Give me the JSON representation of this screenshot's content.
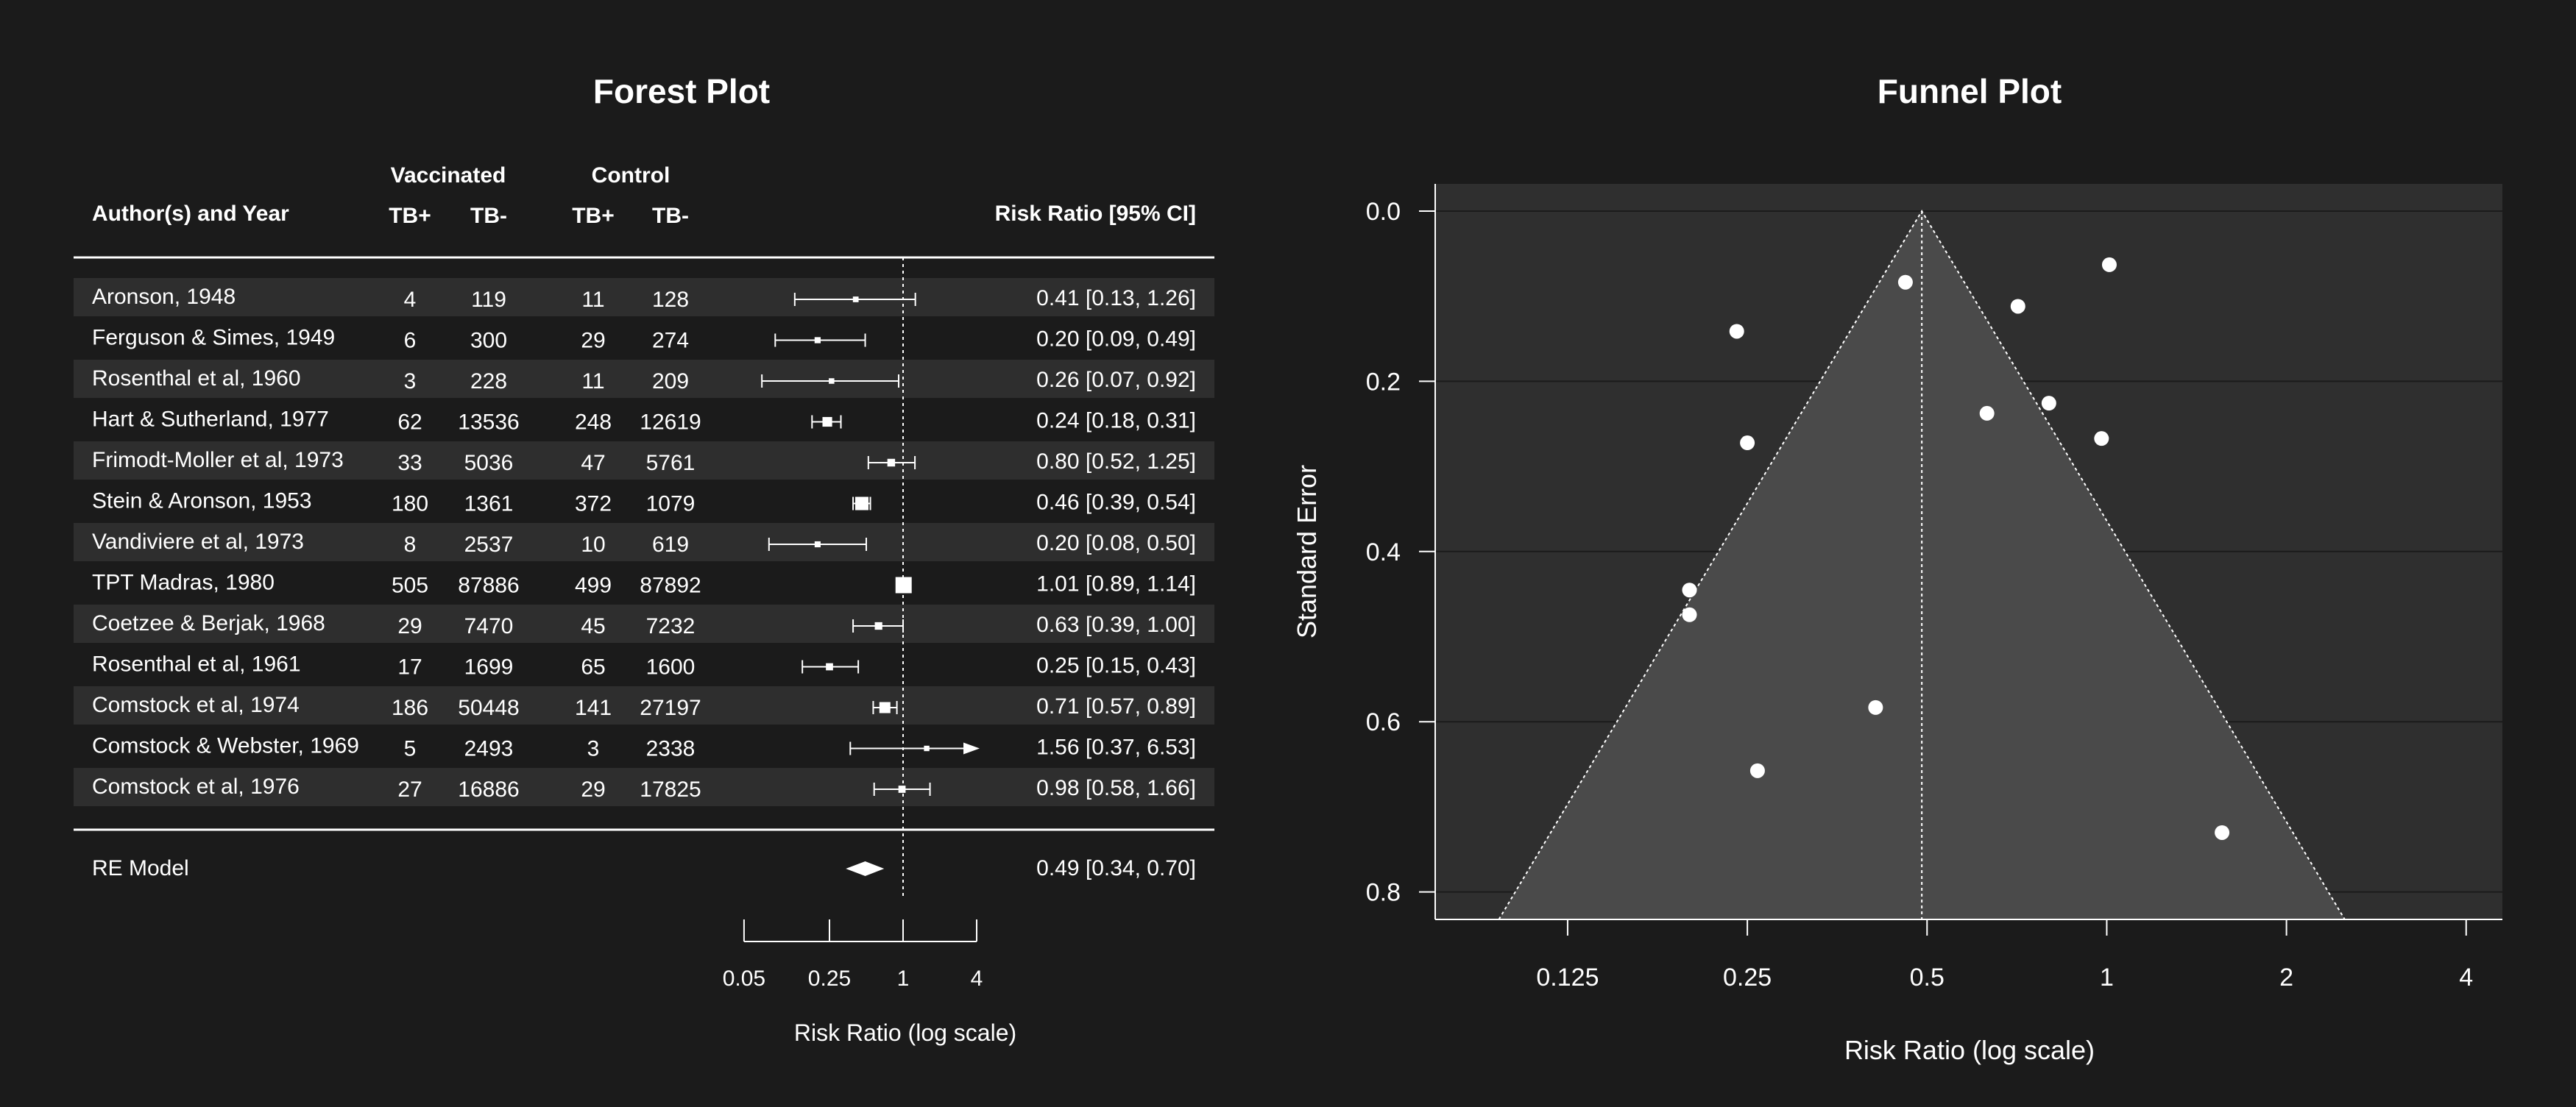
{
  "chart_data": [
    {
      "type": "forest",
      "title": "Forest Plot",
      "headers": {
        "study": "Author(s) and Year",
        "group1": "Vaccinated",
        "group2": "Control",
        "col_tbpos_v": "TB+",
        "col_tbneg_v": "TB-",
        "col_tbpos_c": "TB+",
        "col_tbneg_c": "TB-",
        "estimate": "Risk Ratio [95% CI]"
      },
      "studies": [
        {
          "label": "Aronson, 1948",
          "tpos": 4,
          "tneg": 119,
          "cpos": 11,
          "cneg": 128,
          "rr": 0.41,
          "lo": 0.13,
          "hi": 1.26,
          "text": "0.41 [0.13, 1.26]",
          "se": 0.5833
        },
        {
          "label": "Ferguson & Simes, 1949",
          "tpos": 6,
          "tneg": 300,
          "cpos": 29,
          "cneg": 274,
          "rr": 0.2,
          "lo": 0.09,
          "hi": 0.49,
          "text": "0.20 [0.09, 0.49]",
          "se": 0.4453
        },
        {
          "label": "Rosenthal et al, 1960",
          "tpos": 3,
          "tneg": 228,
          "cpos": 11,
          "cneg": 209,
          "rr": 0.26,
          "lo": 0.07,
          "hi": 0.92,
          "text": "0.26 [0.07, 0.92]",
          "se": 0.6576
        },
        {
          "label": "Hart & Sutherland, 1977",
          "tpos": 62,
          "tneg": 13536,
          "cpos": 248,
          "cneg": 12619,
          "rr": 0.24,
          "lo": 0.18,
          "hi": 0.31,
          "text": "0.24 [0.18, 0.31]",
          "se": 0.1413
        },
        {
          "label": "Frimodt-Moller et al, 1973",
          "tpos": 33,
          "tneg": 5036,
          "cpos": 47,
          "cneg": 5761,
          "rr": 0.8,
          "lo": 0.52,
          "hi": 1.25,
          "text": "0.80 [0.52, 1.25]",
          "se": 0.2257
        },
        {
          "label": "Stein & Aronson, 1953",
          "tpos": 180,
          "tneg": 1361,
          "cpos": 372,
          "cneg": 1079,
          "rr": 0.46,
          "lo": 0.39,
          "hi": 0.54,
          "text": "0.46 [0.39, 0.54]",
          "se": 0.0836
        },
        {
          "label": "Vandiviere et al, 1973",
          "tpos": 8,
          "tneg": 2537,
          "cpos": 10,
          "cneg": 619,
          "rr": 0.2,
          "lo": 0.08,
          "hi": 0.5,
          "text": "0.20 [0.08, 0.50]",
          "se": 0.4743
        },
        {
          "label": "TPT Madras, 1980",
          "tpos": 505,
          "tneg": 87886,
          "cpos": 499,
          "cneg": 87892,
          "rr": 1.01,
          "lo": 0.89,
          "hi": 1.14,
          "text": "1.01 [0.89, 1.14]",
          "se": 0.063
        },
        {
          "label": "Coetzee & Berjak, 1968",
          "tpos": 29,
          "tneg": 7470,
          "cpos": 45,
          "cneg": 7232,
          "rr": 0.63,
          "lo": 0.39,
          "hi": 1.0,
          "text": "0.63 [0.39, 1.00]",
          "se": 0.2376
        },
        {
          "label": "Rosenthal et al, 1961",
          "tpos": 17,
          "tneg": 1699,
          "cpos": 65,
          "cneg": 1600,
          "rr": 0.25,
          "lo": 0.15,
          "hi": 0.43,
          "text": "0.25 [0.15, 0.43]",
          "se": 0.2723
        },
        {
          "label": "Comstock et al, 1974",
          "tpos": 186,
          "tneg": 50448,
          "cpos": 141,
          "cneg": 27197,
          "rr": 0.71,
          "lo": 0.57,
          "hi": 0.89,
          "text": "0.71 [0.57, 0.89]",
          "se": 0.1119
        },
        {
          "label": "Comstock & Webster, 1969",
          "tpos": 5,
          "tneg": 2493,
          "cpos": 3,
          "cneg": 2338,
          "rr": 1.56,
          "lo": 0.37,
          "hi": 6.53,
          "text": "1.56 [0.37, 6.53]",
          "se": 0.7303
        },
        {
          "label": "Comstock et al, 1976",
          "tpos": 27,
          "tneg": 16886,
          "cpos": 29,
          "cneg": 17825,
          "rr": 0.98,
          "lo": 0.58,
          "hi": 1.66,
          "text": "0.98 [0.58, 1.66]",
          "se": 0.2672
        }
      ],
      "summary": {
        "label": "RE Model",
        "rr": 0.49,
        "lo": 0.34,
        "hi": 0.7,
        "text": "0.49 [0.34, 0.70]"
      },
      "xaxis": {
        "label": "Risk Ratio (log scale)",
        "scale": "log",
        "ticks": [
          0.05,
          0.25,
          1,
          4
        ],
        "tick_labels": [
          "0.05",
          "0.25",
          "1",
          "4"
        ]
      },
      "reference_line": 1
    },
    {
      "type": "scatter",
      "title": "Funnel Plot",
      "xlabel": "Risk Ratio (log scale)",
      "ylabel": "Standard Error",
      "xscale": "log",
      "xlim": [
        0.075,
        4.6
      ],
      "xticks": [
        0.125,
        0.25,
        0.5,
        1,
        2,
        4
      ],
      "xtick_labels": [
        "0.125",
        "0.25",
        "0.5",
        "1",
        "2",
        "4"
      ],
      "ylim": [
        0.0,
        0.8
      ],
      "y_reversed": true,
      "yticks": [
        0.0,
        0.2,
        0.4,
        0.6,
        0.8
      ],
      "ytick_labels": [
        "0.0",
        "0.2",
        "0.4",
        "0.6",
        "0.8"
      ],
      "center": 0.49,
      "grid": true
    }
  ],
  "colors": {
    "background": "#1b1b1b",
    "row_band": "#2e2e2e",
    "panel": "#2f2f2f",
    "funnel_region": "#4a4a4a",
    "foreground": "#ffffff"
  }
}
